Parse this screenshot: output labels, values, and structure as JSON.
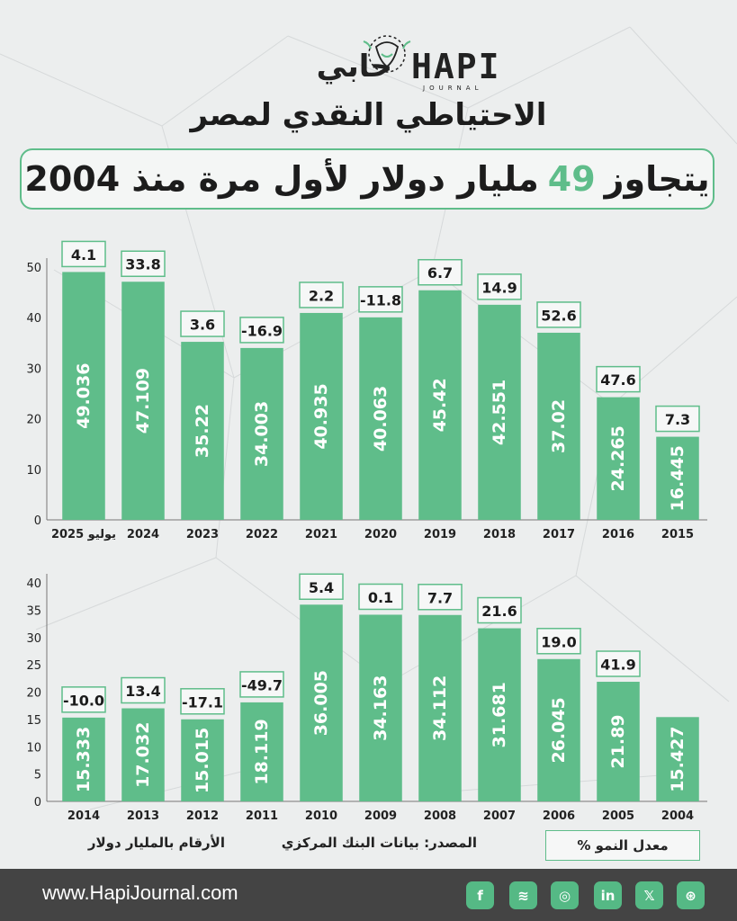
{
  "header": {
    "logo_ar": "حابي",
    "logo_en": "HAPI",
    "logo_sub": "JOURNAL",
    "title": "الاحتياطي النقدي لمصر",
    "banner_before": "يتجاوز",
    "banner_highlight": "49",
    "banner_after": "مليار دولار لأول مرة منذ 2004",
    "accent_color": "#5fbd8a"
  },
  "chart_data": [
    {
      "type": "bar",
      "categories": [
        "يوليو 2025",
        "2024",
        "2023",
        "2022",
        "2021",
        "2020",
        "2019",
        "2018",
        "2017",
        "2016",
        "2015"
      ],
      "values": [
        49.036,
        47.109,
        35.22,
        34.003,
        40.935,
        40.063,
        45.42,
        42.551,
        37.02,
        24.265,
        16.445
      ],
      "value_labels": [
        "49.036",
        "47.109",
        "35.22",
        "34.003",
        "40.935",
        "40.063",
        "45.42",
        "42.551",
        "37.02",
        "24.265",
        "16.445"
      ],
      "growth": [
        "4.1",
        "33.8",
        "3.6",
        "-16.9",
        "2.2",
        "-11.8",
        "6.7",
        "14.9",
        "52.6",
        "47.6",
        "7.3"
      ],
      "yticks": [
        0,
        10,
        20,
        30,
        40,
        50
      ],
      "ylim": [
        0,
        50
      ],
      "color": "#5fbd8a"
    },
    {
      "type": "bar",
      "categories": [
        "2014",
        "2013",
        "2012",
        "2011",
        "2010",
        "2009",
        "2008",
        "2007",
        "2006",
        "2005",
        "2004"
      ],
      "values": [
        15.333,
        17.032,
        15.015,
        18.119,
        36.005,
        34.163,
        34.112,
        31.681,
        26.045,
        21.89,
        15.427
      ],
      "value_labels": [
        "15.333",
        "17.032",
        "15.015",
        "18.119",
        "36.005",
        "34.163",
        "34.112",
        "31.681",
        "26.045",
        "21.89",
        "15.427"
      ],
      "growth": [
        "-10.0",
        "13.4",
        "-17.1",
        "-49.7",
        "5.4",
        "0.1",
        "7.7",
        "21.6",
        "19.0",
        "41.9",
        ""
      ],
      "yticks": [
        0,
        5,
        10,
        15,
        20,
        25,
        30,
        35,
        40
      ],
      "ylim": [
        0,
        40
      ],
      "color": "#5fbd8a"
    }
  ],
  "notes": {
    "units": "الأرقام بالمليار دولار",
    "source": "المصدر: بيانات البنك المركزي",
    "growth_legend": "معدل النمو %"
  },
  "footer": {
    "url": "www.HapiJournal.com",
    "icons": [
      "facebook-icon",
      "spotify-icon",
      "instagram-icon",
      "linkedin-icon",
      "x-icon",
      "dribbble-icon"
    ],
    "icon_glyphs": [
      "f",
      "≋",
      "◎",
      "in",
      "𝕏",
      "⊛"
    ]
  }
}
